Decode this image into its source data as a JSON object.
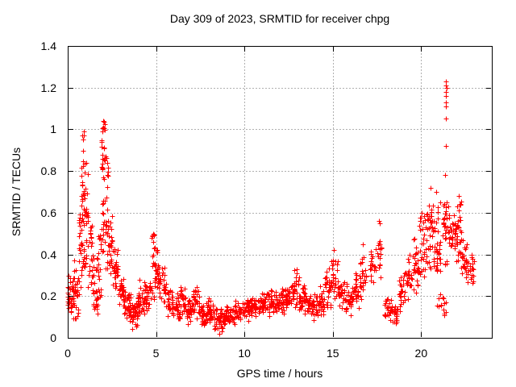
{
  "chart_data": {
    "type": "scatter",
    "title": "Day 309 of 2023, SRMTID for receiver chpg",
    "xlabel": "GPS time / hours",
    "ylabel": "SRMTID / TECUs",
    "xlim": [
      0,
      24
    ],
    "ylim": [
      0,
      1.4
    ],
    "xticks": {
      "values": [
        0,
        5,
        10,
        15,
        20
      ],
      "labels": [
        "0",
        "5",
        "10",
        "15",
        "20"
      ]
    },
    "yticks": {
      "values": [
        0,
        0.2,
        0.4,
        0.6,
        0.8,
        1.0,
        1.2,
        1.4
      ],
      "labels": [
        "0",
        "0.2",
        "0.4",
        "0.6",
        "0.8",
        "1",
        "1.2",
        "1.4"
      ]
    },
    "grid": {
      "show": true,
      "color": "#b0b0b0",
      "dash": [
        2,
        2
      ]
    },
    "border_color": "#000000",
    "marker": {
      "shape": "plus",
      "size": 7,
      "color": "#ff0000"
    },
    "legend": "none",
    "point_cloud": {
      "seed": 309,
      "bin_format": "[hour_start, hour_end, y_min_TECU, y_max_TECU, n_points]",
      "density_bins": [
        [
          0.0,
          0.3,
          0.05,
          0.33,
          30
        ],
        [
          0.3,
          0.6,
          0.08,
          0.37,
          32
        ],
        [
          0.6,
          0.75,
          0.2,
          0.6,
          15
        ],
        [
          0.75,
          0.95,
          0.3,
          0.99,
          40
        ],
        [
          0.95,
          1.15,
          0.35,
          0.85,
          25
        ],
        [
          1.15,
          1.4,
          0.2,
          0.55,
          22
        ],
        [
          1.4,
          1.7,
          0.1,
          0.4,
          30
        ],
        [
          1.7,
          1.9,
          0.15,
          0.5,
          20
        ],
        [
          1.9,
          2.1,
          0.4,
          1.04,
          38
        ],
        [
          2.1,
          2.3,
          0.3,
          0.9,
          24
        ],
        [
          2.3,
          2.55,
          0.3,
          0.6,
          24
        ],
        [
          2.55,
          2.85,
          0.18,
          0.45,
          28
        ],
        [
          2.85,
          3.2,
          0.12,
          0.32,
          35
        ],
        [
          3.2,
          3.6,
          0.06,
          0.26,
          38
        ],
        [
          3.6,
          3.95,
          0.03,
          0.2,
          32
        ],
        [
          3.95,
          4.35,
          0.08,
          0.3,
          35
        ],
        [
          4.35,
          4.65,
          0.1,
          0.28,
          25
        ],
        [
          4.65,
          4.95,
          0.18,
          0.5,
          30
        ],
        [
          4.95,
          5.2,
          0.2,
          0.45,
          25
        ],
        [
          5.2,
          5.55,
          0.14,
          0.36,
          26
        ],
        [
          5.55,
          5.95,
          0.1,
          0.28,
          30
        ],
        [
          5.95,
          6.35,
          0.08,
          0.23,
          30
        ],
        [
          6.35,
          6.65,
          0.1,
          0.27,
          25
        ],
        [
          6.65,
          7.05,
          0.06,
          0.2,
          30
        ],
        [
          7.05,
          7.45,
          0.08,
          0.26,
          32
        ],
        [
          7.45,
          7.85,
          0.05,
          0.18,
          32
        ],
        [
          7.85,
          8.3,
          0.06,
          0.2,
          36
        ],
        [
          8.3,
          8.8,
          0.02,
          0.15,
          36
        ],
        [
          8.8,
          9.3,
          0.04,
          0.16,
          36
        ],
        [
          9.3,
          9.8,
          0.06,
          0.18,
          36
        ],
        [
          9.8,
          10.3,
          0.07,
          0.2,
          36
        ],
        [
          10.3,
          10.8,
          0.09,
          0.21,
          36
        ],
        [
          10.8,
          11.3,
          0.1,
          0.23,
          36
        ],
        [
          11.3,
          11.8,
          0.1,
          0.24,
          36
        ],
        [
          11.8,
          12.3,
          0.1,
          0.26,
          36
        ],
        [
          12.3,
          12.7,
          0.12,
          0.28,
          30
        ],
        [
          12.7,
          13.1,
          0.13,
          0.33,
          30
        ],
        [
          13.1,
          13.5,
          0.1,
          0.26,
          30
        ],
        [
          13.5,
          14.0,
          0.08,
          0.22,
          34
        ],
        [
          14.0,
          14.5,
          0.09,
          0.25,
          34
        ],
        [
          14.5,
          14.9,
          0.12,
          0.36,
          28
        ],
        [
          14.9,
          15.3,
          0.15,
          0.42,
          28
        ],
        [
          15.3,
          15.7,
          0.12,
          0.3,
          27
        ],
        [
          15.7,
          16.1,
          0.1,
          0.27,
          27
        ],
        [
          16.1,
          16.5,
          0.13,
          0.33,
          25
        ],
        [
          16.5,
          16.9,
          0.16,
          0.45,
          25
        ],
        [
          17.1,
          17.45,
          0.22,
          0.48,
          18
        ],
        [
          17.45,
          17.75,
          0.27,
          0.57,
          18
        ],
        [
          17.9,
          18.3,
          0.05,
          0.23,
          26
        ],
        [
          18.3,
          18.7,
          0.04,
          0.2,
          22
        ],
        [
          18.7,
          19.1,
          0.12,
          0.33,
          25
        ],
        [
          19.1,
          19.5,
          0.18,
          0.42,
          25
        ],
        [
          19.5,
          19.9,
          0.2,
          0.48,
          28
        ],
        [
          19.9,
          20.3,
          0.28,
          0.6,
          30
        ],
        [
          20.3,
          20.7,
          0.32,
          0.65,
          34
        ],
        [
          20.7,
          21.1,
          0.3,
          0.68,
          34
        ],
        [
          20.9,
          21.4,
          0.06,
          0.24,
          14
        ],
        [
          21.2,
          21.6,
          0.35,
          0.65,
          30
        ],
        [
          21.6,
          22.0,
          0.38,
          0.63,
          34
        ],
        [
          22.0,
          22.3,
          0.33,
          0.66,
          28
        ],
        [
          22.3,
          22.6,
          0.26,
          0.48,
          24
        ],
        [
          22.6,
          23.0,
          0.25,
          0.42,
          22
        ]
      ],
      "explicit_points": [
        [
          21.38,
          1.23
        ],
        [
          21.4,
          1.21
        ],
        [
          21.43,
          1.2
        ],
        [
          21.4,
          1.18
        ],
        [
          21.42,
          1.16
        ],
        [
          21.39,
          1.13
        ],
        [
          21.41,
          1.11
        ],
        [
          21.4,
          1.05
        ],
        [
          21.42,
          0.92
        ],
        [
          21.36,
          0.78
        ],
        [
          20.55,
          0.72
        ],
        [
          20.85,
          0.7
        ],
        [
          22.15,
          0.68
        ],
        [
          22.18,
          0.64
        ],
        [
          2.0,
          1.04
        ],
        [
          2.02,
          1.01
        ],
        [
          1.98,
          0.99
        ],
        [
          0.9,
          0.99
        ],
        [
          0.93,
          0.97
        ],
        [
          0.88,
          0.95
        ],
        [
          4.85,
          0.5
        ],
        [
          15.05,
          0.42
        ],
        [
          16.7,
          0.45
        ],
        [
          17.6,
          0.56
        ],
        [
          8.6,
          0.02
        ],
        [
          12.95,
          0.33
        ],
        [
          0.35,
          0.37
        ]
      ]
    }
  }
}
